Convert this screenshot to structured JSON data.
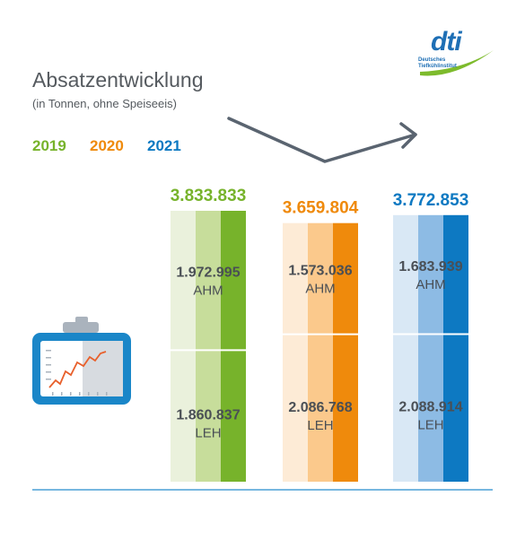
{
  "title": "Absatzentwicklung",
  "subtitle": "(in Tonnen, ohne Speiseeis)",
  "logo": {
    "brand": "dti",
    "line1": "Deutsches",
    "line2": "Tiefkühlinstitut"
  },
  "colors": {
    "2019": [
      "#eaf1dc",
      "#c7dd9b",
      "#77b32b"
    ],
    "2020": [
      "#fdebd6",
      "#fbc98c",
      "#ef8a0c"
    ],
    "2021": [
      "#d9e8f5",
      "#8dbbe4",
      "#0d79c2"
    ],
    "text": "#4a4f55",
    "rule": "#4a9fd6"
  },
  "chart_data": {
    "type": "bar",
    "stacked": true,
    "categories": [
      "2019",
      "2020",
      "2021"
    ],
    "totals": [
      "3.833.833",
      "3.659.804",
      "3.772.853"
    ],
    "total_values": [
      3833833,
      3659804,
      3772853
    ],
    "series": [
      {
        "name": "AHM",
        "values": [
          1972995,
          1573036,
          1683939
        ],
        "labels": [
          "1.972.995",
          "1.573.036",
          "1.683.939"
        ]
      },
      {
        "name": "LEH",
        "values": [
          1860837,
          2086768,
          2088914
        ],
        "labels": [
          "1.860.837",
          "2.086.768",
          "2.088.914"
        ]
      }
    ],
    "trend": "down-then-up"
  }
}
